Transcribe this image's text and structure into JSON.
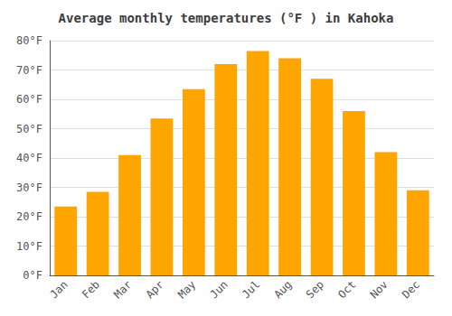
{
  "chart_data": {
    "type": "bar",
    "title": "Average monthly temperatures (°F ) in Kahoka",
    "categories": [
      "Jan",
      "Feb",
      "Mar",
      "Apr",
      "May",
      "Jun",
      "Jul",
      "Aug",
      "Sep",
      "Oct",
      "Nov",
      "Dec"
    ],
    "values": [
      23.5,
      28.5,
      41.0,
      53.5,
      63.5,
      72.0,
      76.5,
      74.0,
      67.0,
      56.0,
      42.0,
      29.0
    ],
    "color": "#FFA500",
    "ylim": [
      0,
      80
    ],
    "yticks": [
      {
        "value": 0,
        "label": "0°F"
      },
      {
        "value": 10,
        "label": "10°F"
      },
      {
        "value": 20,
        "label": "20°F"
      },
      {
        "value": 30,
        "label": "30°F"
      },
      {
        "value": 40,
        "label": "40°F"
      },
      {
        "value": 50,
        "label": "50°F"
      },
      {
        "value": 60,
        "label": "60°F"
      },
      {
        "value": 70,
        "label": "70°F"
      },
      {
        "value": 80,
        "label": "80°F"
      }
    ],
    "grid": true
  }
}
